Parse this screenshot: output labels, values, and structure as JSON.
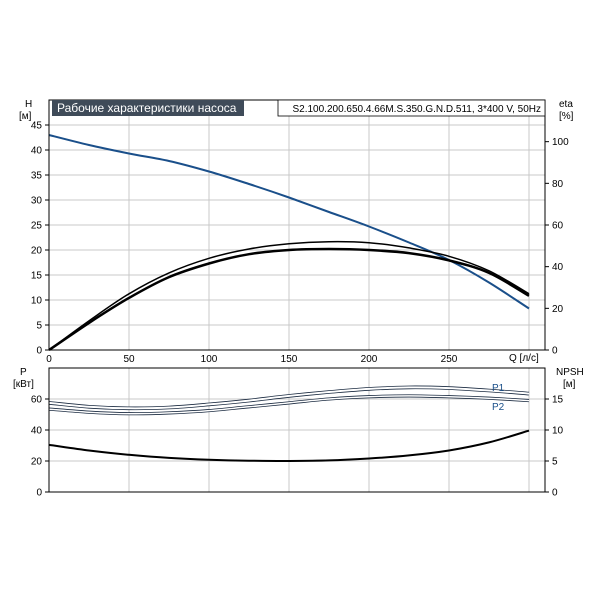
{
  "header": {
    "title": "Рабочие характеристики насоса",
    "model": "S2.100.200.650.4.66M.S.350.G.N.D.511, 3*400 V, 50Hz"
  },
  "chart_data": [
    {
      "type": "line",
      "panel": "head-efficiency",
      "left_axis": {
        "label": "H",
        "unit": "[м]",
        "ticks": [
          0,
          5,
          10,
          15,
          20,
          25,
          30,
          35,
          40,
          45
        ],
        "range": [
          0,
          50
        ]
      },
      "right_axis": {
        "label": "eta",
        "unit": "[%]",
        "ticks": [
          0,
          20,
          40,
          60,
          80,
          100
        ],
        "range": [
          0,
          120
        ]
      },
      "x_axis": {
        "label": "Q [л/с]",
        "ticks": [
          0,
          50,
          100,
          150,
          200,
          250
        ],
        "range": [
          0,
          310
        ]
      },
      "grid": true,
      "series": [
        {
          "id": "H",
          "axis": "left",
          "color": "#1a4f8a",
          "stroke_width": 2,
          "x": [
            0,
            25,
            50,
            75,
            100,
            125,
            150,
            175,
            200,
            225,
            250,
            275,
            300
          ],
          "y": [
            43.0,
            41.0,
            39.3,
            37.8,
            35.7,
            33.2,
            30.5,
            27.6,
            24.7,
            21.5,
            18.0,
            13.5,
            8.3
          ]
        },
        {
          "id": "eta-1",
          "axis": "right",
          "color": "#000000",
          "stroke_width": 1.5,
          "x": [
            0,
            25,
            50,
            75,
            100,
            125,
            150,
            175,
            200,
            225,
            250,
            275,
            300
          ],
          "y": [
            0,
            14,
            27,
            37,
            44,
            48.5,
            51,
            52,
            51.5,
            49,
            45,
            38,
            27
          ]
        },
        {
          "id": "eta-2",
          "axis": "right",
          "color": "#000000",
          "stroke_width": 2.5,
          "x": [
            0,
            25,
            50,
            75,
            100,
            125,
            150,
            175,
            200,
            225,
            250,
            275,
            300
          ],
          "y": [
            0,
            13,
            25,
            35,
            41.5,
            46,
            48,
            48.5,
            48,
            46.5,
            43,
            37,
            26
          ]
        }
      ]
    },
    {
      "type": "line",
      "panel": "power-npsh",
      "left_axis": {
        "label": "P",
        "unit": "[кВт]",
        "ticks": [
          0,
          20,
          40,
          60
        ],
        "range": [
          0,
          80
        ]
      },
      "right_axis": {
        "label": "NPSH",
        "unit": "[м]",
        "ticks": [
          0,
          5,
          10,
          15
        ],
        "range": [
          0,
          20
        ]
      },
      "x_axis": {
        "range": [
          0,
          310
        ]
      },
      "grid": true,
      "series": [
        {
          "id": "P1",
          "name": "P1",
          "axis": "left",
          "color": "#1a4f8a",
          "stroke_width": 2,
          "outlined": true,
          "x": [
            0,
            25,
            50,
            75,
            100,
            125,
            150,
            175,
            200,
            225,
            250,
            275,
            300
          ],
          "y": [
            57.5,
            55,
            54,
            54.5,
            56.5,
            59,
            62,
            64.5,
            66.5,
            67.5,
            67,
            65.5,
            63.5
          ]
        },
        {
          "id": "P2",
          "name": "P2",
          "axis": "left",
          "color": "#1a4f8a",
          "stroke_width": 1.5,
          "outlined": true,
          "x": [
            0,
            25,
            50,
            75,
            100,
            125,
            150,
            175,
            200,
            225,
            250,
            275,
            300
          ],
          "y": [
            53.5,
            51.5,
            50.5,
            51,
            52.5,
            55,
            57.5,
            60,
            61.5,
            62,
            61.5,
            60.5,
            59
          ]
        },
        {
          "id": "NPSH",
          "axis": "right",
          "color": "#000000",
          "stroke_width": 2,
          "x": [
            0,
            25,
            50,
            75,
            100,
            125,
            150,
            175,
            200,
            225,
            250,
            275,
            300
          ],
          "y": [
            7.6,
            6.7,
            6.0,
            5.5,
            5.2,
            5.05,
            5.0,
            5.1,
            5.4,
            5.9,
            6.7,
            8.0,
            9.9
          ]
        }
      ]
    }
  ]
}
